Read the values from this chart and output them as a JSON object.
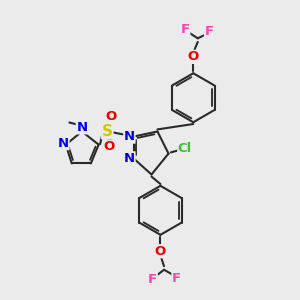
{
  "bg_color": "#ebebeb",
  "bond_color": "#2a2a2a",
  "bond_width": 1.5,
  "atom_colors": {
    "N": "#0000ee",
    "O": "#ee0000",
    "S": "#cccc00",
    "Cl": "#44bb44",
    "F": "#ff44aa",
    "C": "#000000"
  },
  "title": "",
  "xlim": [
    0,
    10
  ],
  "ylim": [
    0,
    10
  ]
}
